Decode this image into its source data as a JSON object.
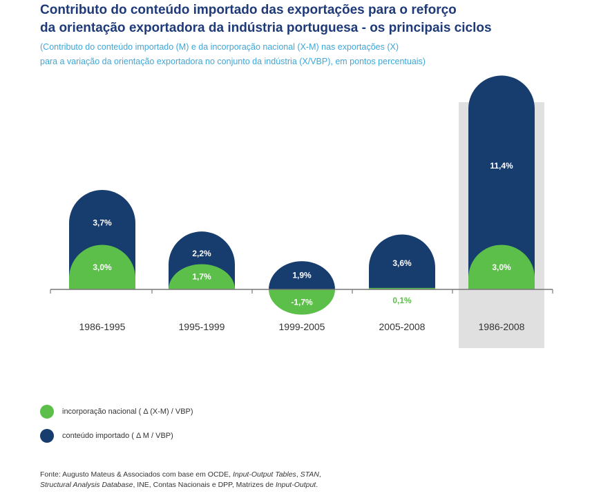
{
  "title": {
    "line1": "Contributo do conteúdo importado das exportações para o reforço",
    "line2": "da orientação exportadora da indústria portuguesa - os principais ciclos"
  },
  "subtitle": {
    "line1": "(Contributo do conteúdo importado (M) e da incorporação nacional (X-M) nas exportações (X)",
    "line2": "para a variação da orientação exportadora no conjunto da indústria (X/VBP), em pontos percentuais)"
  },
  "colors": {
    "importado": "#173c6e",
    "nacional": "#5cbf4a",
    "highlight": "#e0e0e0",
    "axis": "#777777"
  },
  "chart_data": {
    "type": "bar",
    "categories": [
      "1986-1995",
      "1995-1999",
      "1999-2005",
      "2005-2008",
      "1986-2008"
    ],
    "highlighted_category": "1986-2008",
    "series": [
      {
        "name": "conteúdo importado ( Δ M / VBP)",
        "values": [
          3.7,
          2.2,
          1.9,
          3.6,
          11.4
        ],
        "labels": [
          "3,7%",
          "2,2%",
          "1,9%",
          "3,6%",
          "11,4%"
        ]
      },
      {
        "name": "incorporação nacional ( Δ (X-M) / VBP)",
        "values": [
          3.0,
          1.7,
          -1.7,
          0.1,
          3.0
        ],
        "labels": [
          "3,0%",
          "1,7%",
          "-1,7%",
          "0,1%",
          "3,0%"
        ]
      }
    ],
    "legend_position": "bottom-left",
    "grid": false
  },
  "legend": {
    "items": [
      {
        "label": "incorporação nacional ( Δ (X-M) / VBP)",
        "color": "#5cbf4a"
      },
      {
        "label": "conteúdo importado ( Δ M / VBP)",
        "color": "#173c6e"
      }
    ]
  },
  "source": {
    "line1_plain": "Fonte: Augusto Mateus & Associados com base em OCDE, ",
    "line1_italic_1": "Input-Output Tables",
    "line1_sep": ", ",
    "line1_italic_2": "STAN",
    "line1_end": ",",
    "line2_italic": "Structural Analysis Database",
    "line2_plain": ", INE, Contas Nacionais e DPP, Matrizes de ",
    "line2_italic_2": "Input-Output",
    "line2_end": "."
  }
}
